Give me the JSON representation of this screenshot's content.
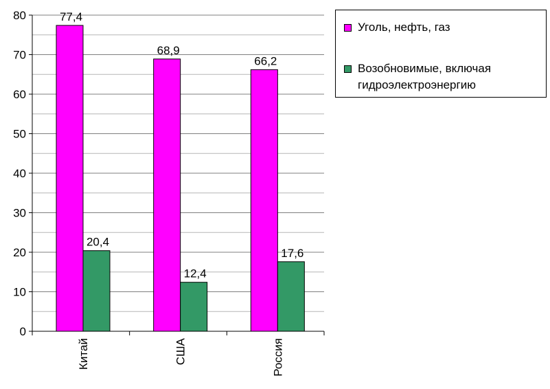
{
  "chart_data": {
    "type": "bar",
    "categories": [
      "Китай",
      "США",
      "Россия"
    ],
    "series": [
      {
        "name": "Уголь, нефть, газ",
        "values": [
          77.4,
          68.9,
          66.2
        ],
        "labels": [
          "77,4",
          "68,9",
          "66,2"
        ],
        "color": "#ff00ff"
      },
      {
        "name": "Возобновимые, включая гидроэлектроэнергию",
        "values": [
          20.4,
          12.4,
          17.6
        ],
        "labels": [
          "20,4",
          "12,4",
          "17,6"
        ],
        "color": "#339966"
      }
    ],
    "ylim": [
      0,
      80
    ],
    "yticks": [
      0,
      10,
      20,
      30,
      40,
      50,
      60,
      70,
      80
    ],
    "grid": true,
    "legend": "right",
    "title": "",
    "xlabel": "",
    "ylabel": ""
  },
  "legend": {
    "line1": "Уголь, нефть, газ",
    "line2a": "Возобновимые, включая",
    "line2b": "гидроэлектроэнергию"
  }
}
